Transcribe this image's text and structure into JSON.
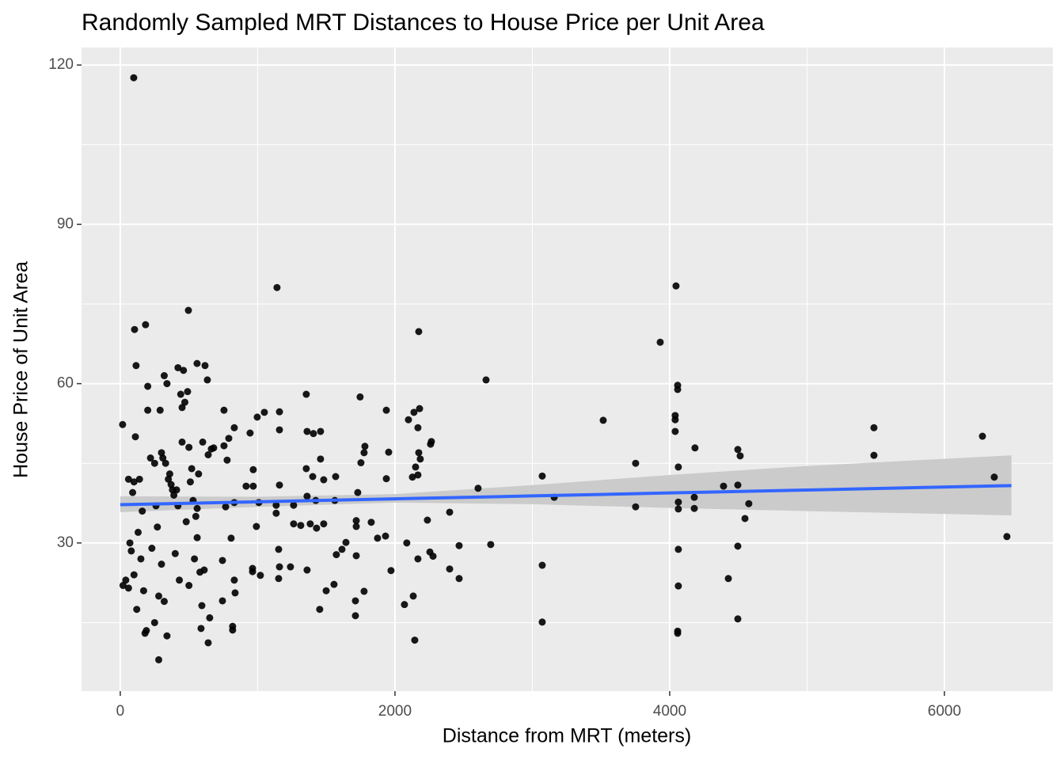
{
  "chart_data": {
    "type": "scatter",
    "title": "Randomly Sampled MRT Distances to House Price per Unit Area",
    "x_label": "Distance from MRT (meters)",
    "y_label": "House Price of Unit Area",
    "xlim": [
      -282,
      6790
    ],
    "ylim": [
      2.1,
      123.3
    ],
    "xticks": [
      0,
      2000,
      4000,
      6000
    ],
    "yticks": [
      30,
      60,
      90,
      120
    ],
    "x_minor_grid": [
      1000,
      3000,
      5000
    ],
    "y_minor_grid": [
      15,
      45,
      75,
      105
    ],
    "grid": true,
    "panel_color": "#ebebeb",
    "series": [
      {
        "color": "#000000",
        "x": [
          98,
          17,
          104,
          184,
          115,
          496,
          1141,
          4046,
          3931,
          2173,
          2663,
          3516,
          5487,
          5487,
          6277,
          6363,
          6455,
          4058,
          4058,
          4040,
          4040,
          4040,
          4063,
          4184,
          4179,
          4179,
          4063,
          4063,
          4063,
          4063,
          4058,
          4058,
          4392,
          4427,
          4496,
          4513,
          4496,
          4496,
          4496,
          4576,
          4548,
          3752,
          3752,
          3072,
          3159,
          3072,
          3072,
          2697,
          2605,
          2467,
          2467,
          2398,
          2398,
          2265,
          2259,
          2236,
          2254,
          2277,
          2179,
          2167,
          2173,
          2184,
          2150,
          2167,
          2127,
          2138,
          2098,
          2086,
          2167,
          2133,
          2069,
          2144,
          1937,
          1954,
          1937,
          1931,
          1873,
          1971,
          1746,
          1781,
          1775,
          1752,
          1729,
          1718,
          1718,
          1827,
          1718,
          1775,
          1712,
          1712,
          1643,
          1614,
          1573,
          1556,
          1499,
          1452,
          1568,
          1562,
          1481,
          1458,
          1458,
          1406,
          1354,
          1360,
          1354,
          1360,
          1401,
          1423,
          1383,
          1429,
          1481,
          1360,
          1159,
          1159,
          1049,
          997,
          945,
          968,
          916,
          968,
          1009,
          991,
          1159,
          1135,
          1135,
          1153,
          1159,
          1153,
          1239,
          1262,
          1314,
          963,
          963,
          1020,
          1262,
          830,
          790,
          755,
          680,
          755,
          778,
          830,
          767,
          807,
          744,
          830,
          836,
          744,
          818,
          818,
          617,
          634,
          559,
          663,
          640,
          611,
          594,
          588,
          651,
          640,
          20,
          40,
          60,
          80,
          100,
          120,
          140,
          160,
          180,
          200,
          220,
          250,
          270,
          280,
          300,
          320,
          340,
          360,
          380,
          400,
          420,
          440,
          460,
          480,
          500,
          520,
          540,
          560,
          580,
          200,
          190,
          250,
          290,
          300,
          310,
          330,
          350,
          370,
          390,
          410,
          430,
          450,
          470,
          490,
          510,
          530,
          550,
          570,
          100,
          110,
          130,
          150,
          170,
          90,
          60,
          70,
          230,
          260,
          280,
          340,
          320,
          420,
          450,
          500,
          560,
          600
        ],
        "values": [
          117.6,
          52.3,
          70.2,
          71.1,
          63.4,
          73.8,
          78.1,
          78.4,
          67.8,
          69.8,
          60.7,
          53.1,
          51.7,
          46.5,
          50.1,
          42.4,
          31.2,
          59.7,
          58.9,
          54.0,
          53.2,
          51.0,
          44.3,
          47.9,
          38.6,
          36.5,
          37.7,
          36.4,
          28.8,
          21.9,
          13.4,
          13.0,
          40.7,
          23.3,
          47.6,
          46.4,
          40.9,
          29.4,
          15.7,
          37.4,
          34.6,
          45.0,
          36.8,
          42.6,
          38.6,
          25.8,
          15.1,
          29.7,
          40.3,
          29.5,
          23.3,
          35.8,
          25.1,
          49.1,
          48.6,
          34.3,
          28.3,
          27.5,
          55.3,
          51.7,
          47.0,
          45.8,
          44.3,
          42.8,
          42.4,
          54.6,
          53.2,
          30.0,
          27.0,
          20.0,
          18.4,
          11.7,
          55.0,
          47.1,
          42.1,
          31.3,
          30.9,
          24.8,
          57.5,
          48.2,
          47.0,
          45.1,
          39.5,
          34.2,
          33.1,
          33.9,
          27.6,
          20.9,
          19.1,
          16.3,
          30.1,
          28.8,
          27.8,
          22.2,
          21.0,
          17.5,
          42.5,
          38.0,
          41.9,
          45.8,
          51.0,
          50.6,
          58.0,
          51.0,
          44.0,
          38.8,
          42.5,
          38.0,
          33.6,
          32.8,
          33.6,
          24.9,
          54.7,
          51.3,
          54.6,
          53.7,
          50.7,
          43.8,
          40.7,
          40.7,
          37.6,
          33.1,
          40.9,
          37.1,
          35.6,
          28.8,
          25.5,
          23.3,
          25.5,
          33.6,
          33.3,
          25.2,
          24.6,
          23.9,
          37.1,
          51.7,
          49.7,
          48.3,
          47.9,
          55.0,
          45.6,
          37.6,
          36.8,
          30.9,
          26.7,
          23.0,
          20.6,
          19.1,
          14.3,
          13.6,
          63.4,
          60.7,
          63.8,
          47.7,
          46.6,
          24.9,
          18.2,
          13.9,
          15.9,
          11.2,
          22,
          23,
          21.5,
          28.5,
          24,
          17.5,
          42,
          36,
          13,
          55,
          46,
          45,
          33,
          8,
          26,
          19,
          60,
          43,
          40,
          28,
          37,
          58,
          62.5,
          34,
          22,
          44,
          27,
          31,
          24.5,
          59.5,
          13.5,
          15,
          55,
          47,
          46,
          45,
          42,
          41,
          39,
          40,
          23,
          49,
          56.5,
          58.5,
          41.5,
          38,
          35,
          43,
          41.5,
          50,
          32,
          27,
          21,
          39.5,
          42,
          30,
          29,
          37,
          20,
          12.5,
          61.5,
          63,
          55.5,
          48,
          36.5,
          49
        ]
      }
    ],
    "fit": {
      "color": "#3366ff",
      "band_color": "#cbcbcb",
      "x": [
        0,
        1000,
        2000,
        3000,
        4000,
        5000,
        6488
      ],
      "y": [
        37.2,
        37.75,
        38.31,
        38.86,
        39.42,
        39.97,
        40.8
      ],
      "lower": [
        35.8,
        36.8,
        37.6,
        37.3,
        36.6,
        36.0,
        35.2
      ],
      "upper": [
        38.8,
        38.7,
        39.2,
        40.9,
        42.8,
        44.5,
        46.5
      ]
    }
  }
}
